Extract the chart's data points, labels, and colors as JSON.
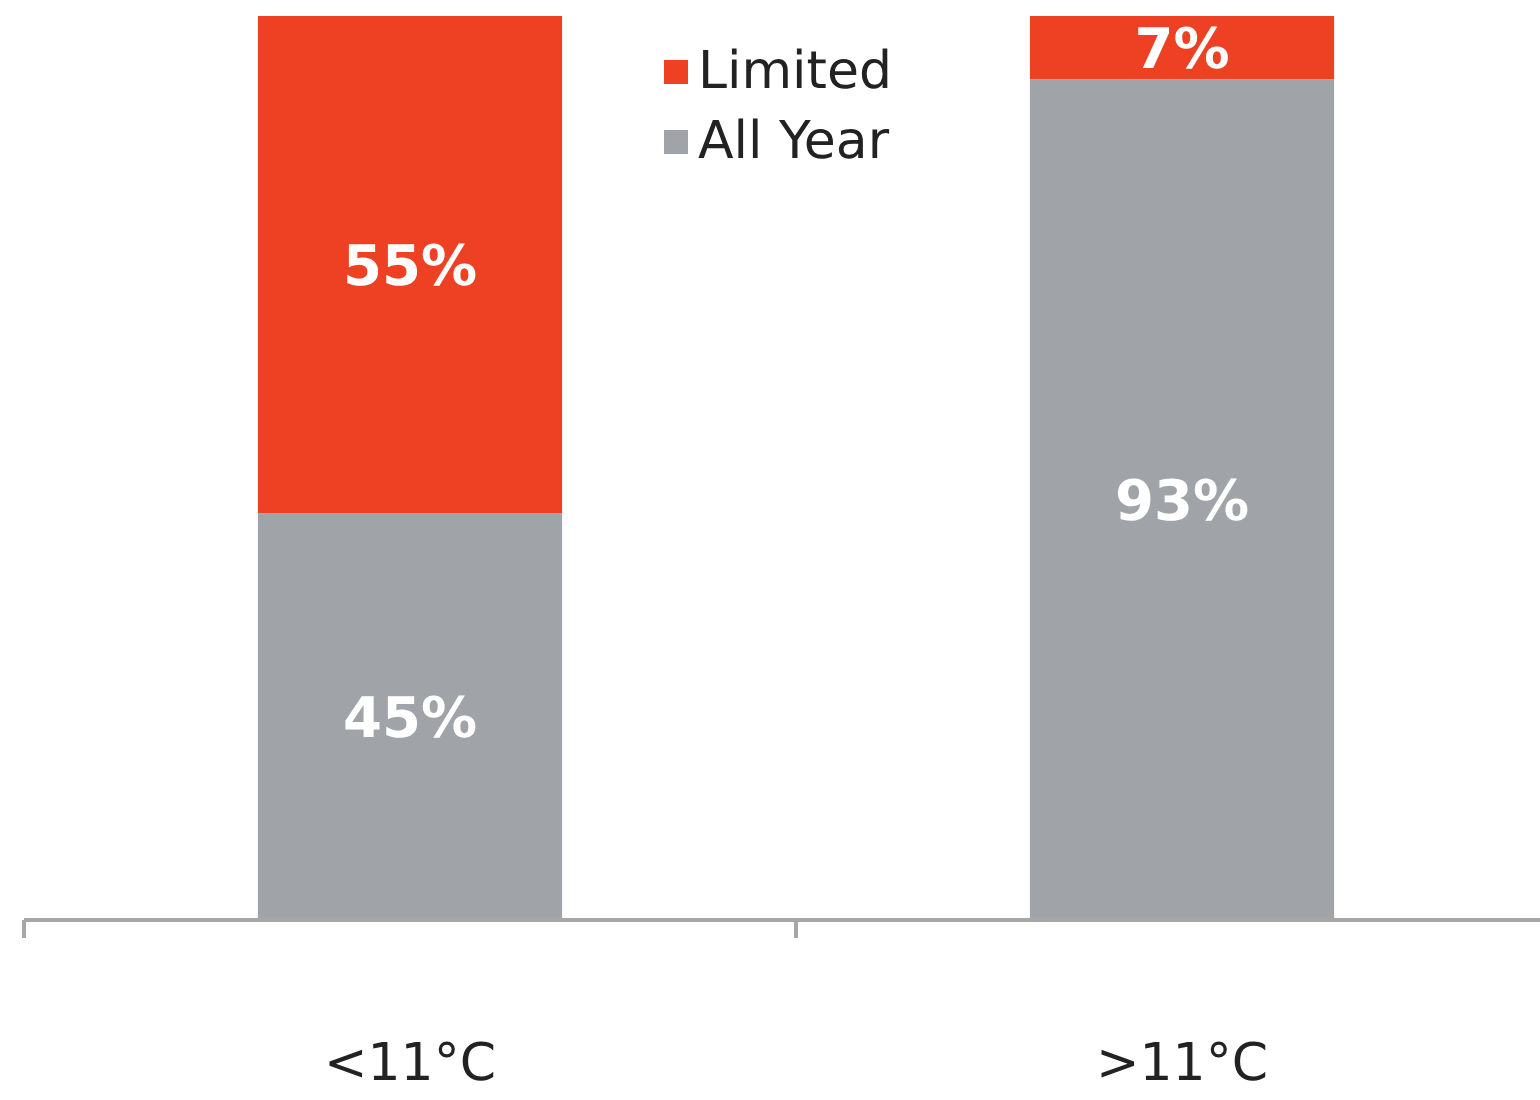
{
  "chart_data": {
    "type": "bar",
    "stacked": true,
    "categories": [
      "<11°C",
      ">11°C"
    ],
    "series": [
      {
        "name": "All Year",
        "color": "#a0a3a8",
        "values": [
          45,
          93
        ],
        "value_labels": [
          "45%",
          "93%"
        ]
      },
      {
        "name": "Limited",
        "color": "#ee4123",
        "values": [
          55,
          7
        ],
        "value_labels": [
          "55%",
          "7%"
        ]
      }
    ],
    "ylim": [
      0,
      100
    ],
    "tick_labels": "x",
    "legend": "top"
  }
}
